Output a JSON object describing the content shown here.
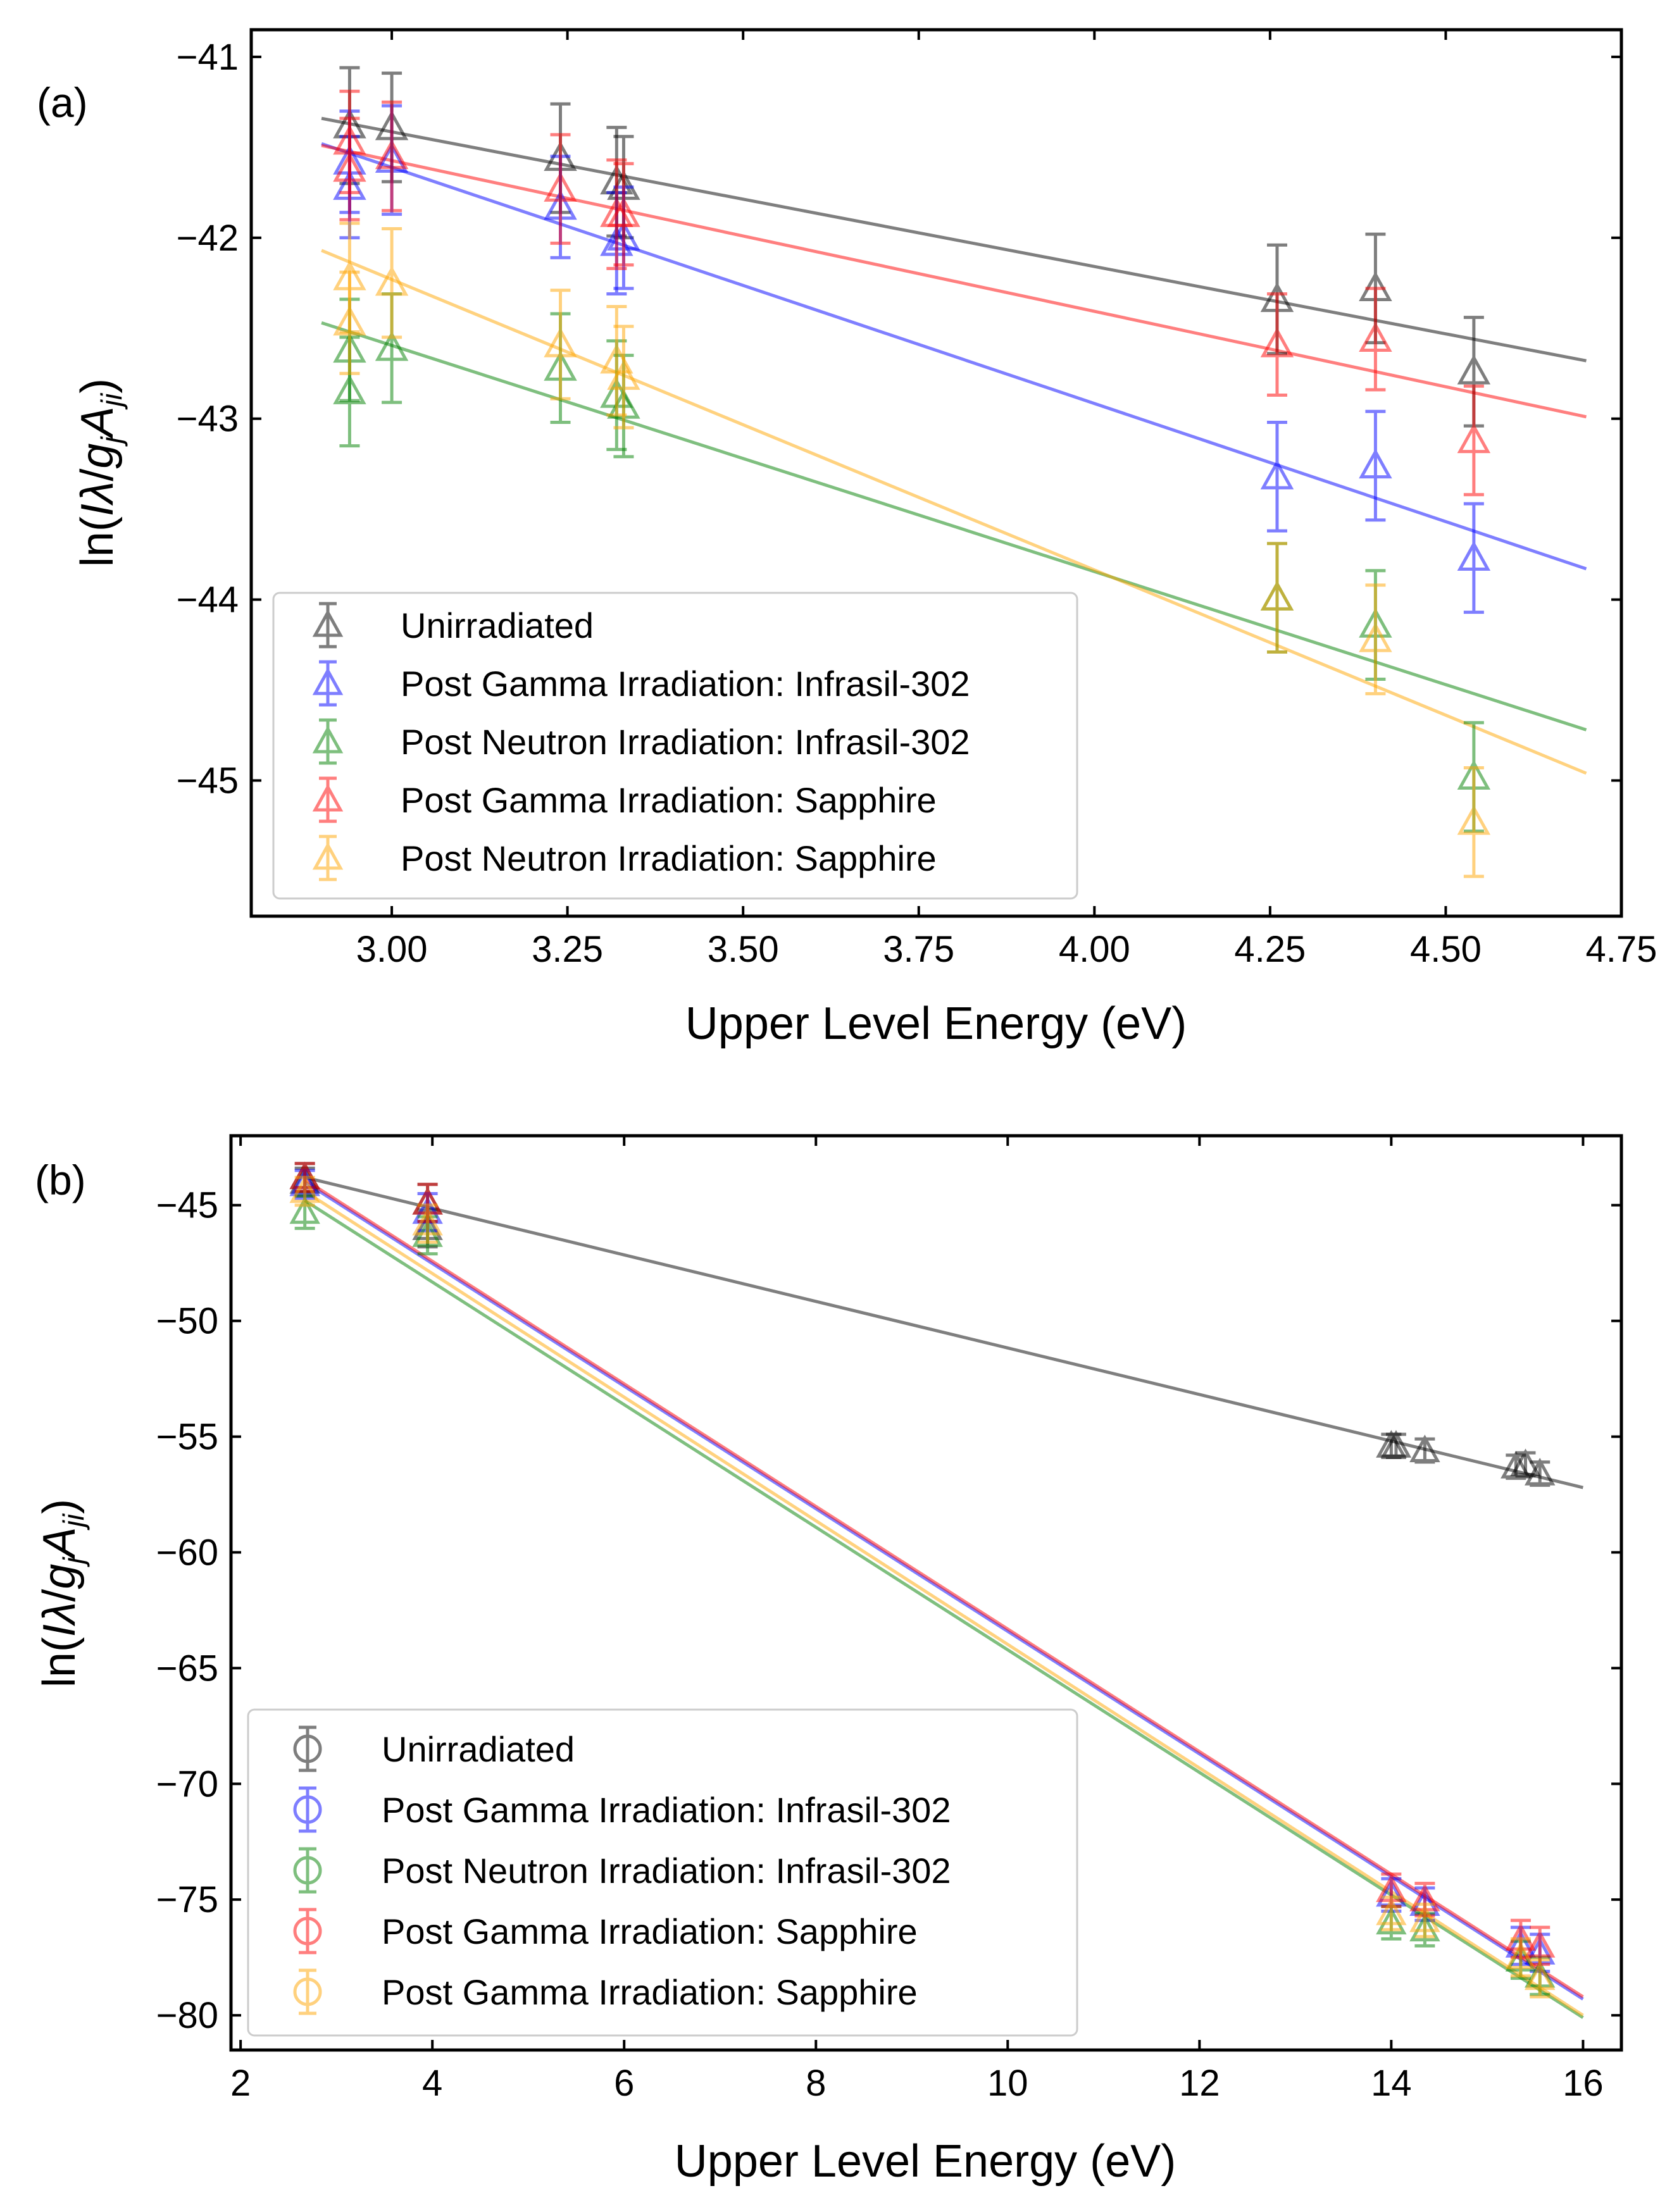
{
  "chart_data": [
    {
      "panel": "(a)",
      "type": "scatter",
      "marker": "triangle",
      "xlabel": "Upper Level Energy (eV)",
      "ylabel_parts": {
        "pre": "ln(",
        "I": "I",
        "lambda": "λ",
        "slash": "/",
        "g": "g",
        "gsub": "j",
        "A": "A",
        "Asub": "ji",
        "post": ")"
      },
      "xlim": [
        2.8,
        4.75
      ],
      "ylim": [
        -45.75,
        -40.85
      ],
      "xticks": [
        3.0,
        3.25,
        3.5,
        3.75,
        4.0,
        4.25,
        4.5,
        4.75
      ],
      "xtick_labels": [
        "3.00",
        "3.25",
        "3.50",
        "3.75",
        "4.00",
        "4.25",
        "4.50",
        "4.75"
      ],
      "yticks": [
        -41,
        -42,
        -43,
        -44,
        -45
      ],
      "ytick_labels": [
        "−41",
        "−42",
        "−43",
        "−44",
        "−45"
      ],
      "legend_position": "lower-left",
      "series": [
        {
          "name": "Unirradiated",
          "color": "#000000",
          "points": [
            [
              2.94,
              -41.38,
              0.32
            ],
            [
              3.0,
              -41.39,
              0.3
            ],
            [
              3.24,
              -41.56,
              0.3
            ],
            [
              3.32,
              -41.69,
              0.3
            ],
            [
              3.33,
              -41.72,
              0.28
            ],
            [
              4.26,
              -42.34,
              0.3
            ],
            [
              4.4,
              -42.28,
              0.3
            ],
            [
              4.54,
              -42.74,
              0.3
            ]
          ],
          "fit": [
            [
              2.9,
              -41.34
            ],
            [
              4.7,
              -42.68
            ]
          ]
        },
        {
          "name": "Post Gamma Irradiation: Infrasil-302",
          "color": "#0000ff",
          "points": [
            [
              2.94,
              -41.58,
              0.28
            ],
            [
              2.94,
              -41.72,
              0.28
            ],
            [
              3.0,
              -41.57,
              0.3
            ],
            [
              3.24,
              -41.83,
              0.28
            ],
            [
              3.32,
              -42.03,
              0.28
            ],
            [
              3.33,
              -42.0,
              0.28
            ],
            [
              4.26,
              -43.32,
              0.3
            ],
            [
              4.4,
              -43.26,
              0.3
            ],
            [
              4.54,
              -43.77,
              0.3
            ]
          ],
          "fit": [
            [
              2.9,
              -41.48
            ],
            [
              4.7,
              -43.83
            ]
          ]
        },
        {
          "name": "Post Neutron Irradiation: Infrasil-302",
          "color": "#008000",
          "points": [
            [
              2.94,
              -42.62,
              0.28
            ],
            [
              2.94,
              -42.85,
              0.3
            ],
            [
              3.0,
              -42.61,
              0.3
            ],
            [
              3.24,
              -42.72,
              0.3
            ],
            [
              3.32,
              -42.87,
              0.3
            ],
            [
              3.33,
              -42.93,
              0.28
            ],
            [
              4.26,
              -43.99,
              0.3
            ],
            [
              4.4,
              -44.14,
              0.3
            ],
            [
              4.54,
              -44.98,
              0.3
            ]
          ],
          "fit": [
            [
              2.9,
              -42.47
            ],
            [
              4.7,
              -44.72
            ]
          ]
        },
        {
          "name": "Post Gamma Irradiation: Sapphire",
          "color": "#ff0000",
          "points": [
            [
              2.94,
              -41.47,
              0.28
            ],
            [
              2.94,
              -41.62,
              0.28
            ],
            [
              3.0,
              -41.55,
              0.3
            ],
            [
              3.24,
              -41.73,
              0.3
            ],
            [
              3.32,
              -41.87,
              0.3
            ],
            [
              3.33,
              -41.87,
              0.28
            ],
            [
              4.26,
              -42.59,
              0.28
            ],
            [
              4.4,
              -42.56,
              0.28
            ],
            [
              4.54,
              -43.12,
              0.3
            ]
          ],
          "fit": [
            [
              2.9,
              -41.49
            ],
            [
              4.7,
              -42.99
            ]
          ]
        },
        {
          "name": "Post Neutron Irradiation: Sapphire",
          "color": "#ffa500",
          "points": [
            [
              2.94,
              -42.22,
              0.3
            ],
            [
              2.94,
              -42.47,
              0.28
            ],
            [
              3.0,
              -42.25,
              0.3
            ],
            [
              3.24,
              -42.59,
              0.3
            ],
            [
              3.32,
              -42.68,
              0.3
            ],
            [
              3.33,
              -42.77,
              0.28
            ],
            [
              4.26,
              -43.99,
              0.3
            ],
            [
              4.4,
              -44.22,
              0.3
            ],
            [
              4.54,
              -45.23,
              0.3
            ]
          ],
          "fit": [
            [
              2.9,
              -42.07
            ],
            [
              4.7,
              -44.96
            ]
          ]
        }
      ]
    },
    {
      "panel": "(b)",
      "type": "scatter",
      "marker": "triangle (legend shows circle)",
      "xlabel": "Upper Level Energy (eV)",
      "ylabel_parts": {
        "pre": "ln(",
        "I": "I",
        "lambda": "λ",
        "slash": "/",
        "g": "g",
        "gsub": "j",
        "A": "A",
        "Asub": "ji",
        "post": ")"
      },
      "xlim": [
        1.9,
        16.4
      ],
      "ylim": [
        -81.5,
        -42.0
      ],
      "xticks": [
        2,
        4,
        6,
        8,
        10,
        12,
        14,
        16
      ],
      "xtick_labels": [
        "2",
        "4",
        "6",
        "8",
        "10",
        "12",
        "14",
        "16"
      ],
      "yticks": [
        -45,
        -50,
        -55,
        -60,
        -65,
        -70,
        -75,
        -80
      ],
      "ytick_labels": [
        "−45",
        "−50",
        "−55",
        "−60",
        "−65",
        "−70",
        "−75",
        "−80"
      ],
      "legend_position": "lower-left",
      "series": [
        {
          "name": "Unirradiated",
          "color": "#000000",
          "points": [
            [
              2.67,
              -43.8,
              0.6
            ],
            [
              2.67,
              -44.0,
              0.6
            ],
            [
              3.95,
              -44.9,
              0.8
            ],
            [
              3.95,
              -46.0,
              0.8
            ],
            [
              14.0,
              -55.4,
              0.5
            ],
            [
              14.05,
              -55.4,
              0.5
            ],
            [
              14.35,
              -55.6,
              0.5
            ],
            [
              15.3,
              -56.3,
              0.5
            ],
            [
              15.4,
              -56.2,
              0.5
            ],
            [
              15.55,
              -56.6,
              0.5
            ]
          ],
          "fit": [
            [
              2.67,
              -43.8
            ],
            [
              16.0,
              -57.2
            ]
          ]
        },
        {
          "name": "Post Gamma Irradiation: Infrasil-302",
          "color": "#0000ff",
          "points": [
            [
              2.67,
              -44.1,
              0.6
            ],
            [
              3.95,
              -45.3,
              0.8
            ],
            [
              14.0,
              -74.8,
              0.7
            ],
            [
              14.35,
              -75.2,
              0.7
            ],
            [
              15.35,
              -77.0,
              0.8
            ],
            [
              15.55,
              -77.3,
              0.8
            ]
          ],
          "fit": [
            [
              2.67,
              -44.0
            ],
            [
              16.0,
              -79.3
            ]
          ]
        },
        {
          "name": "Post Neutron Irradiation: Infrasil-302",
          "color": "#008000",
          "points": [
            [
              2.67,
              -45.3,
              0.7
            ],
            [
              3.95,
              -46.3,
              0.8
            ],
            [
              14.0,
              -76.0,
              0.7
            ],
            [
              14.35,
              -76.3,
              0.7
            ],
            [
              15.35,
              -77.6,
              0.8
            ],
            [
              15.55,
              -78.3,
              0.8
            ]
          ],
          "fit": [
            [
              2.67,
              -44.8
            ],
            [
              16.0,
              -80.1
            ]
          ]
        },
        {
          "name": "Post Gamma Irradiation: Sapphire",
          "color": "#ff0000",
          "points": [
            [
              2.67,
              -43.8,
              0.6
            ],
            [
              3.95,
              -44.9,
              0.8
            ],
            [
              14.0,
              -74.6,
              0.7
            ],
            [
              14.35,
              -75.0,
              0.7
            ],
            [
              15.35,
              -76.7,
              0.8
            ],
            [
              15.55,
              -77.0,
              0.8
            ]
          ],
          "fit": [
            [
              2.67,
              -43.9
            ],
            [
              16.0,
              -79.2
            ]
          ]
        },
        {
          "name": "Post Gamma Irradiation: Sapphire",
          "color": "#ffa500",
          "points": [
            [
              2.67,
              -44.4,
              0.6
            ],
            [
              3.95,
              -45.8,
              0.8
            ],
            [
              14.0,
              -75.6,
              0.7
            ],
            [
              14.35,
              -75.9,
              0.7
            ],
            [
              15.35,
              -77.5,
              0.8
            ],
            [
              15.55,
              -78.4,
              0.8
            ]
          ],
          "fit": [
            [
              2.67,
              -44.4
            ],
            [
              16.0,
              -80.0
            ]
          ]
        }
      ]
    }
  ]
}
